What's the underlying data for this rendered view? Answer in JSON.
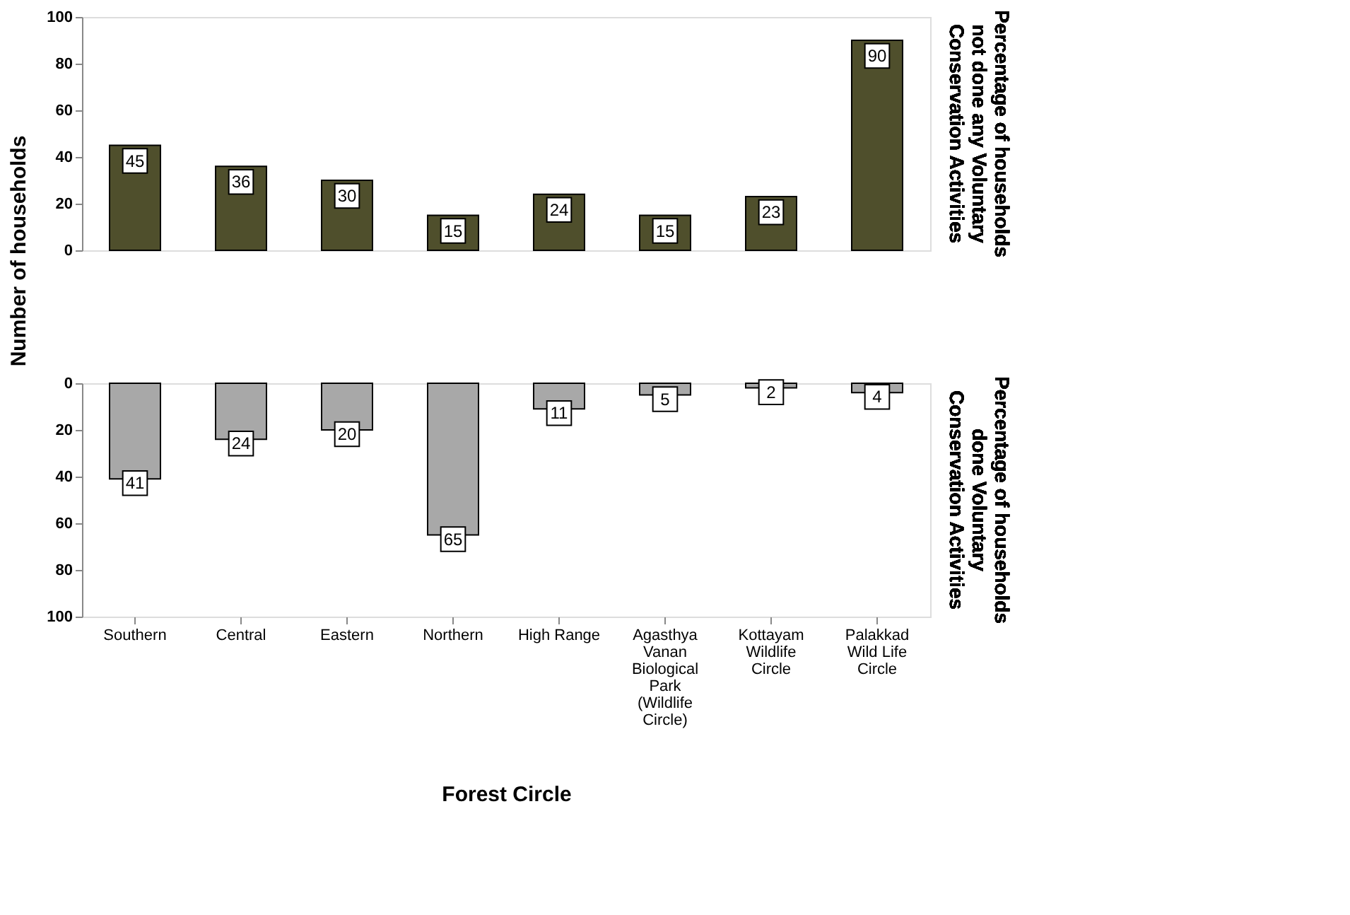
{
  "chart_data": [
    {
      "type": "bar",
      "categories": [
        "Southern",
        "Central",
        "Eastern",
        "Northern",
        "High Range",
        "Agasthya Vanan Biological Park (Wildlife Circle)",
        "Kottayam Wildlife Circle",
        "Palakkad Wild Life Circle"
      ],
      "values": [
        45,
        36,
        30,
        15,
        24,
        15,
        23,
        90
      ],
      "color": "#4f4f2c",
      "ylim": [
        0,
        100
      ],
      "yticks": [
        0,
        20,
        40,
        60,
        80,
        100
      ],
      "ylabel": "Number of households",
      "y2label": "Percentage of households not done any Voluntary Conservation Activities",
      "data_labels": true,
      "tick_labels": "y"
    },
    {
      "type": "bar",
      "categories": [
        "Southern",
        "Central",
        "Eastern",
        "Northern",
        "High Range",
        "Agasthya Vanan Biological Park (Wildlife Circle)",
        "Kottayam Wildlife Circle",
        "Palakkad Wild Life Circle"
      ],
      "values": [
        41,
        24,
        20,
        65,
        11,
        5,
        2,
        4
      ],
      "color": "#a8a8a8",
      "ylim": [
        100,
        0
      ],
      "yticks": [
        0,
        20,
        40,
        60,
        80,
        100
      ],
      "xlabel": "Forest Circle",
      "y2label": "Percentage of households done Voluntary Conservation Activities",
      "data_labels": true
    }
  ]
}
